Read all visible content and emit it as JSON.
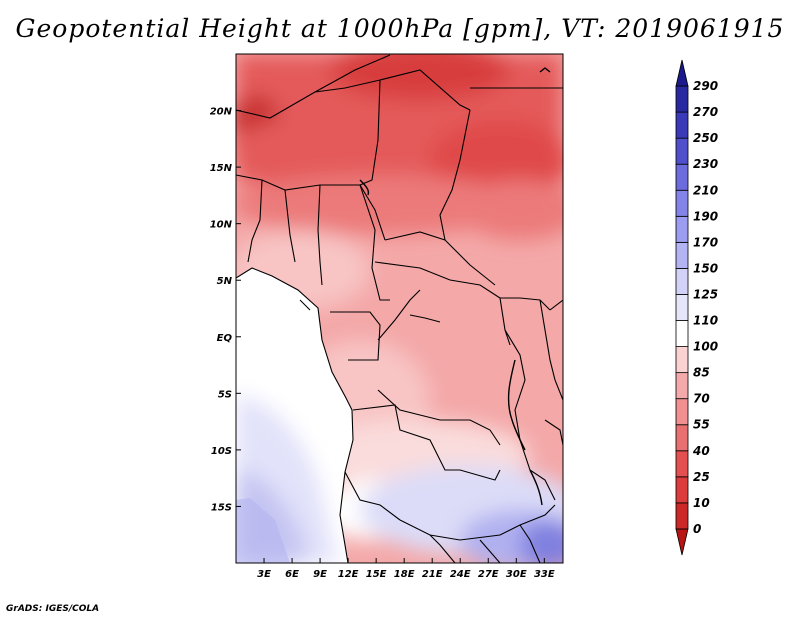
{
  "title": "Geopotential Height at 1000hPa [gpm], VT: 2019061915",
  "credit": "GrADS: IGES/COLA",
  "map": {
    "lon_range": [
      0,
      35
    ],
    "lat_range": [
      -20,
      25
    ],
    "lon_ticks": [
      "3E",
      "6E",
      "9E",
      "12E",
      "15E",
      "18E",
      "21E",
      "24E",
      "27E",
      "30E",
      "33E"
    ],
    "lat_ticks": [
      "20N",
      "15N",
      "10N",
      "5N",
      "EQ",
      "5S",
      "10S",
      "15S"
    ]
  },
  "colorbar": {
    "levels": [
      "0",
      "10",
      "25",
      "40",
      "55",
      "70",
      "85",
      "100",
      "110",
      "125",
      "150",
      "170",
      "190",
      "210",
      "230",
      "250",
      "270",
      "290"
    ],
    "colors": [
      "#b81414",
      "#cc2828",
      "#dc3c3c",
      "#e45050",
      "#e87070",
      "#f09090",
      "#f4aaaa",
      "#fad2d2",
      "#ffffff",
      "#e6e6fa",
      "#d2d2f8",
      "#b4b4f4",
      "#9c9cf0",
      "#8484e8",
      "#6c6cdc",
      "#5050cc",
      "#3a3ab8",
      "#2828a0",
      "#1a1a8c"
    ]
  }
}
